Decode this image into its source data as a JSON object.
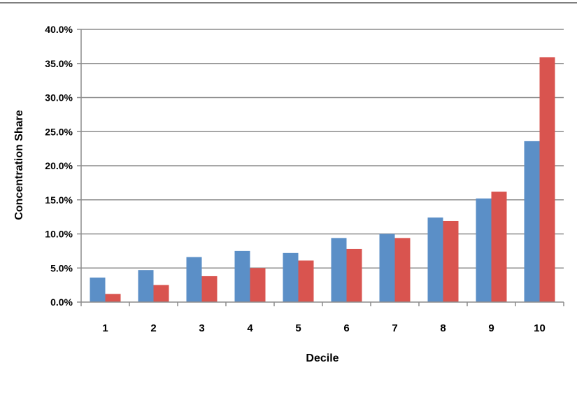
{
  "chart_data": {
    "type": "bar",
    "xlabel": "Decile",
    "ylabel": "Concentration Share",
    "categories": [
      "1",
      "2",
      "3",
      "4",
      "5",
      "6",
      "7",
      "8",
      "9",
      "10"
    ],
    "series": [
      {
        "values": [
          3.6,
          4.7,
          6.6,
          7.5,
          7.2,
          9.4,
          10.0,
          12.4,
          15.2,
          23.6
        ],
        "color": "#5b8fc7"
      },
      {
        "values": [
          1.2,
          2.5,
          3.8,
          5.0,
          6.1,
          7.8,
          9.4,
          11.9,
          16.2,
          35.9
        ],
        "color": "#d9544f"
      }
    ],
    "ylim": [
      0,
      40
    ],
    "yticks": [
      "0.0%",
      "5.0%",
      "10.0%",
      "15.0%",
      "20.0%",
      "25.0%",
      "30.0%",
      "35.0%",
      "40.0%"
    ],
    "grid": true,
    "legend": "none"
  },
  "colors": {
    "gridline": "#8c8c8c",
    "axis": "#8c8c8c",
    "frame_top": "#7f7f7f"
  }
}
